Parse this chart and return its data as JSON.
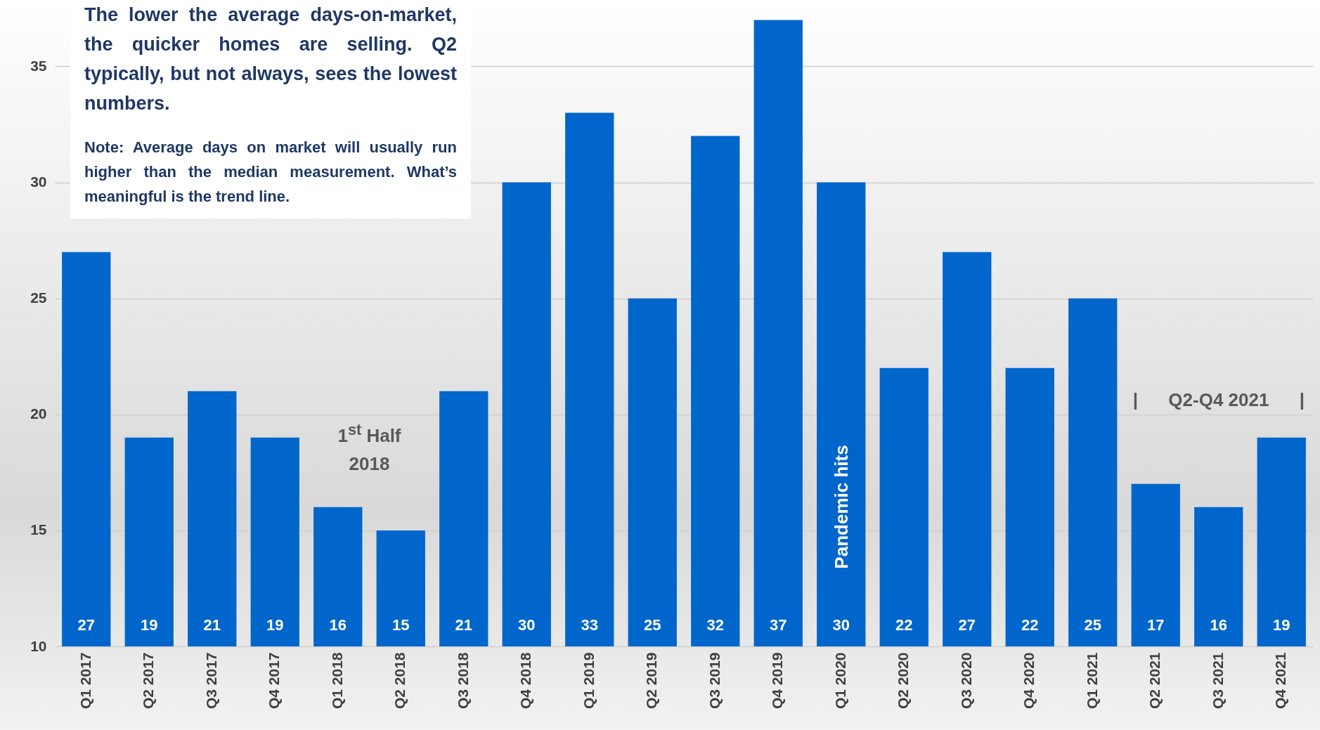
{
  "chart_data": {
    "type": "bar",
    "categories": [
      "Q1 2017",
      "Q2 2017",
      "Q3 2017",
      "Q4 2017",
      "Q1 2018",
      "Q2 2018",
      "Q3 2018",
      "Q4 2018",
      "Q1 2019",
      "Q2 2019",
      "Q3 2019",
      "Q4 2019",
      "Q1 2020",
      "Q2 2020",
      "Q3 2020",
      "Q4 2020",
      "Q1 2021",
      "Q2 2021",
      "Q3 2021",
      "Q4 2021"
    ],
    "values": [
      27,
      19,
      21,
      19,
      16,
      15,
      21,
      30,
      33,
      25,
      32,
      37,
      30,
      22,
      27,
      22,
      25,
      17,
      16,
      19
    ],
    "color": "#0066cc",
    "ylim": [
      10,
      37.8
    ],
    "yticks": [
      10,
      15,
      20,
      25,
      30,
      35
    ],
    "grid": "y",
    "data_labels": true,
    "annotations": [
      "The lower the average days-on-market, the quicker homes are selling. Q2 typically, but not always, sees the lowest numbers.",
      "Note: Average days on market will usually run higher than the median measurement. What’s meaningful is the trend line.",
      "1$^{st}$ Half 2018",
      "Pandemic hits",
      "|      Q2-Q4 2021      |"
    ]
  }
}
